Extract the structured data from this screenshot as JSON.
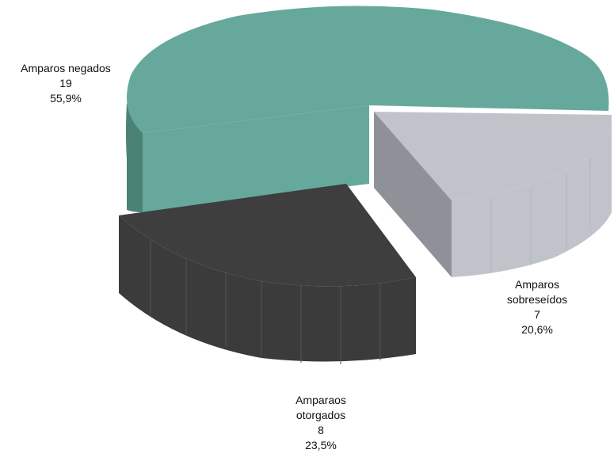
{
  "chart_data": {
    "type": "pie",
    "style": "3d-exploded",
    "slices": [
      {
        "label": "Amparos negados",
        "value": 19,
        "percent": "55,9%",
        "color": "#66a99c",
        "side_color": "#4a8276"
      },
      {
        "label": "Amparos sobreseídos",
        "value": 7,
        "percent": "20,6%",
        "color": "#c1c3cb",
        "side_color": "#8f9199"
      },
      {
        "label": "Amparaos otorgados",
        "value": 8,
        "percent": "23,5%",
        "color": "#3d3e3d",
        "side_color": "#2b2c2b"
      }
    ]
  },
  "labels": {
    "negados": {
      "line1": "Amparos negados",
      "count": "19",
      "percent": "55,9%"
    },
    "sobreseidos": {
      "line1": "Amparos",
      "line2": "sobreseídos",
      "count": "7",
      "percent": "20,6%"
    },
    "otorgados": {
      "line1": "Amparaos",
      "line2": "otorgados",
      "count": "8",
      "percent": "23,5%"
    }
  }
}
